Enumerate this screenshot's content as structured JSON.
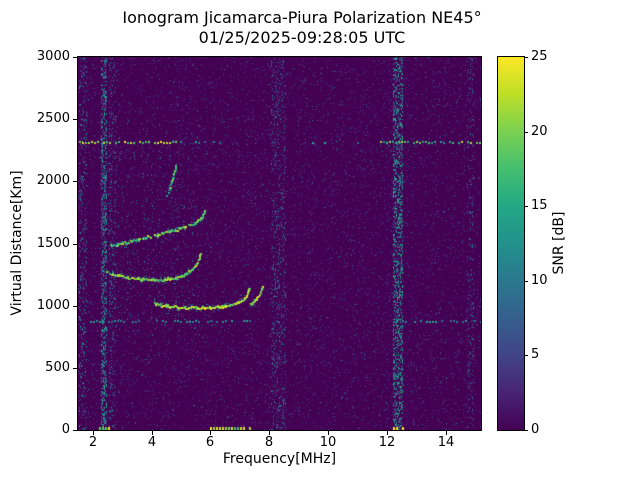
{
  "chart_data": {
    "type": "heatmap",
    "title": "Ionogram Jicamarca-Piura Polarization NE45°",
    "subtitle": "01/25/2025-09:28:05 UTC",
    "xlabel": "Frequency[MHz]",
    "ylabel": "Virtual Distance[Km]",
    "colorbar_label": "SNR [dB]",
    "colormap": "viridis",
    "xlim": [
      1.5,
      15.2
    ],
    "ylim": [
      0,
      3000
    ],
    "clim": [
      0,
      25
    ],
    "x_ticks": [
      2,
      4,
      6,
      8,
      10,
      12,
      14
    ],
    "y_ticks": [
      0,
      500,
      1000,
      1500,
      2000,
      2500,
      3000
    ],
    "colorbar_ticks": [
      0,
      5,
      10,
      15,
      20,
      25
    ],
    "viridis_stops": [
      [
        0.0,
        "#440154"
      ],
      [
        0.1,
        "#482475"
      ],
      [
        0.2,
        "#414487"
      ],
      [
        0.3,
        "#355f8d"
      ],
      [
        0.4,
        "#2a788e"
      ],
      [
        0.5,
        "#21918c"
      ],
      [
        0.6,
        "#22a884"
      ],
      [
        0.7,
        "#44bf70"
      ],
      [
        0.8,
        "#7ad151"
      ],
      [
        0.9,
        "#bddf26"
      ],
      [
        1.0,
        "#fde725"
      ]
    ],
    "background_snr_db": 0,
    "rfi_bands": [
      {
        "f0": 1.55,
        "f1": 1.78,
        "density": 0.1,
        "v0": 3,
        "v1": 14
      },
      {
        "f0": 2.28,
        "f1": 2.46,
        "density": 0.3,
        "v0": 6,
        "v1": 16
      },
      {
        "f0": 2.55,
        "f1": 2.75,
        "density": 0.1,
        "v0": 3,
        "v1": 12
      },
      {
        "f0": 8.05,
        "f1": 8.55,
        "density": 0.1,
        "v0": 3,
        "v1": 11
      },
      {
        "f0": 12.22,
        "f1": 12.52,
        "density": 0.3,
        "v0": 6,
        "v1": 17
      },
      {
        "f0": 14.72,
        "f1": 14.92,
        "density": 0.07,
        "v0": 3,
        "v1": 10
      }
    ],
    "horizontal_echo_lines": [
      {
        "km": 2320,
        "segments": [
          {
            "f0": 1.55,
            "f1": 4.85,
            "density": 0.85,
            "v0": 16,
            "v1": 25
          },
          {
            "f0": 4.85,
            "f1": 11.75,
            "density": 0.12,
            "v0": 8,
            "v1": 16
          },
          {
            "f0": 11.75,
            "f1": 15.2,
            "density": 0.8,
            "v0": 12,
            "v1": 22
          }
        ]
      },
      {
        "km": 875,
        "segments": [
          {
            "f0": 1.8,
            "f1": 7.45,
            "density": 0.55,
            "v0": 8,
            "v1": 15
          },
          {
            "f0": 7.45,
            "f1": 11.9,
            "density": 0.08,
            "v0": 5,
            "v1": 10
          },
          {
            "f0": 11.9,
            "f1": 15.2,
            "density": 0.5,
            "v0": 8,
            "v1": 15
          }
        ]
      }
    ],
    "traces": [
      {
        "name": "F-trace-main",
        "density": 1.0,
        "v0": 18,
        "v1": 25,
        "points": [
          [
            4.1,
            1010
          ],
          [
            4.5,
            995
          ],
          [
            4.9,
            985
          ],
          [
            5.3,
            980
          ],
          [
            5.7,
            980
          ],
          [
            6.1,
            985
          ],
          [
            6.5,
            995
          ],
          [
            6.8,
            1010
          ],
          [
            7.05,
            1035
          ],
          [
            7.2,
            1075
          ],
          [
            7.3,
            1140
          ]
        ]
      },
      {
        "name": "F-trace-x-mode",
        "density": 0.9,
        "v0": 16,
        "v1": 24,
        "points": [
          [
            7.35,
            1010
          ],
          [
            7.5,
            1035
          ],
          [
            7.65,
            1080
          ],
          [
            7.75,
            1150
          ]
        ]
      },
      {
        "name": "second-trace",
        "density": 0.85,
        "v0": 16,
        "v1": 24,
        "points": [
          [
            2.45,
            1270
          ],
          [
            2.8,
            1245
          ],
          [
            3.2,
            1225
          ],
          [
            3.6,
            1210
          ],
          [
            4.0,
            1205
          ],
          [
            4.4,
            1208
          ],
          [
            4.8,
            1220
          ],
          [
            5.1,
            1245
          ],
          [
            5.35,
            1285
          ],
          [
            5.55,
            1345
          ],
          [
            5.65,
            1420
          ]
        ]
      },
      {
        "name": "multi-hop-trace",
        "density": 0.7,
        "v0": 14,
        "v1": 23,
        "points": [
          [
            2.6,
            1480
          ],
          [
            3.0,
            1500
          ],
          [
            3.4,
            1520
          ],
          [
            3.8,
            1545
          ],
          [
            4.2,
            1570
          ],
          [
            4.6,
            1595
          ],
          [
            5.0,
            1620
          ],
          [
            5.3,
            1645
          ],
          [
            5.55,
            1675
          ],
          [
            5.7,
            1710
          ],
          [
            5.8,
            1765
          ]
        ]
      },
      {
        "name": "high-altitude-segment",
        "density": 0.6,
        "v0": 12,
        "v1": 20,
        "points": [
          [
            4.5,
            1880
          ],
          [
            4.62,
            1955
          ],
          [
            4.72,
            2035
          ],
          [
            4.8,
            2115
          ]
        ]
      }
    ],
    "bottom_edge_echoes": [
      {
        "f0": 2.2,
        "f1": 2.6
      },
      {
        "f0": 5.9,
        "f1": 7.4
      },
      {
        "f0": 12.2,
        "f1": 12.55
      }
    ]
  }
}
